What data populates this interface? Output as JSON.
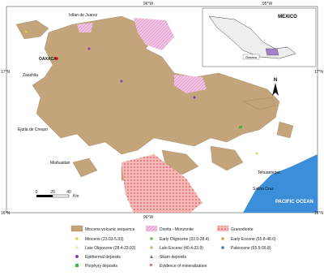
{
  "map": {
    "coordinates": {
      "top": [
        "96°W",
        "95°W"
      ],
      "left": [
        "17°N",
        "16°N"
      ],
      "right": [
        "17°N",
        "16°N"
      ],
      "bottom": [
        "96°W"
      ]
    },
    "places": [
      "Ixtlan de Juarez",
      "OAXACA",
      "Zaachila",
      "Ejutla de Crespo",
      "Miahuatlan",
      "Tehuantepec",
      "Salina Cruz"
    ],
    "ocean": "PACIFIC OCEAN",
    "north": "N",
    "scale": {
      "ticks": [
        "0",
        "20",
        "40"
      ],
      "unit": "Km"
    },
    "inset": {
      "country": "MEXICO",
      "region": "Oaxaca"
    }
  },
  "legend": {
    "units": [
      "Miocene volcanic sequence",
      "Diorita - Monzonite",
      "Granodiorite"
    ],
    "ages": [
      "Miocene (23.03-5.33)",
      "Early Oligocene (33.9-28.4)",
      "Early Eocene (55.8-48.6)",
      "Late Oligocene (28.4-23.03)",
      "Late Eocene (40.4-33.9)",
      "Paleocene (65.5-55.8)"
    ],
    "deposits": [
      "Epithermal deposits",
      "Skarn deposits",
      "Porphyry deposits",
      "Evidence of mineralization"
    ]
  }
}
